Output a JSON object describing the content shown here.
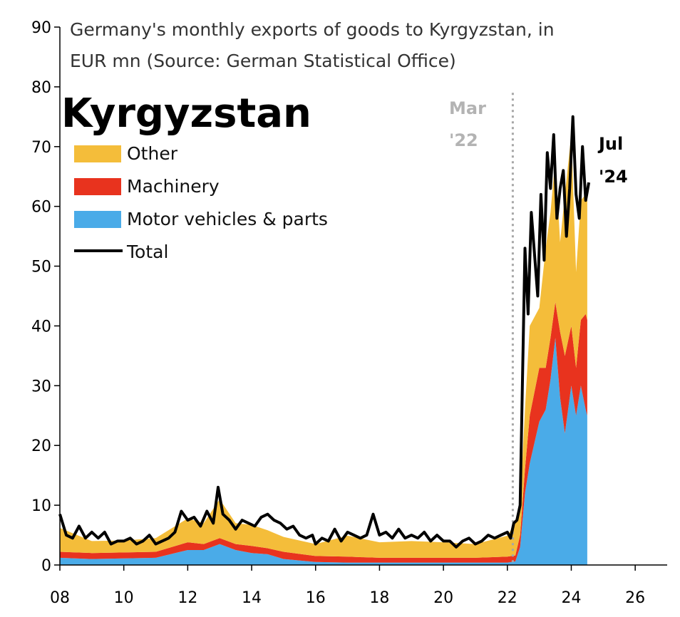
{
  "chart_data": {
    "type": "area",
    "title": "Kyrgyzstan",
    "subtitle_line1": "Germany's monthly exports of goods to Kyrgyzstan, in",
    "subtitle_line2": "EUR mn (Source: German Statistical Office)",
    "xlim": [
      2008,
      2027
    ],
    "ylim": [
      0,
      90
    ],
    "x_ticks": [
      {
        "value": 2008,
        "label": "08"
      },
      {
        "value": 2010,
        "label": "10"
      },
      {
        "value": 2012,
        "label": "12"
      },
      {
        "value": 2014,
        "label": "14"
      },
      {
        "value": 2016,
        "label": "16"
      },
      {
        "value": 2018,
        "label": "18"
      },
      {
        "value": 2020,
        "label": "20"
      },
      {
        "value": 2022,
        "label": "22"
      },
      {
        "value": 2024,
        "label": "24"
      },
      {
        "value": 2026,
        "label": "26"
      }
    ],
    "y_ticks": [
      0,
      10,
      20,
      30,
      40,
      50,
      60,
      70,
      80,
      90
    ],
    "grid": false,
    "legend_position": "top-left",
    "colors": {
      "other": "#f4bd3a",
      "machinery": "#e8331e",
      "motor": "#4aabe8",
      "total": "#000000",
      "marker": "#a6a6a6"
    },
    "series": [
      {
        "name": "Motor vehicles & parts",
        "key": "motor",
        "kind": "stacked-area",
        "points": [
          [
            2008,
            1.2
          ],
          [
            2009,
            1.0
          ],
          [
            2010,
            1.1
          ],
          [
            2011,
            1.2
          ],
          [
            2012,
            2.5
          ],
          [
            2012.5,
            2.5
          ],
          [
            2013,
            3.5
          ],
          [
            2013.5,
            2.5
          ],
          [
            2014,
            2.0
          ],
          [
            2014.5,
            1.8
          ],
          [
            2015,
            1.0
          ],
          [
            2016,
            0.5
          ],
          [
            2017,
            0.4
          ],
          [
            2018,
            0.4
          ],
          [
            2019,
            0.4
          ],
          [
            2020,
            0.4
          ],
          [
            2021,
            0.4
          ],
          [
            2022,
            0.4
          ],
          [
            2022.25,
            0.6
          ],
          [
            2022.4,
            3
          ],
          [
            2022.55,
            12
          ],
          [
            2022.7,
            17
          ],
          [
            2023,
            24
          ],
          [
            2023.2,
            26
          ],
          [
            2023.35,
            31
          ],
          [
            2023.5,
            38
          ],
          [
            2023.65,
            28
          ],
          [
            2023.8,
            22
          ],
          [
            2024,
            30
          ],
          [
            2024.15,
            25
          ],
          [
            2024.3,
            30
          ],
          [
            2024.45,
            26
          ],
          [
            2024.5,
            25
          ]
        ]
      },
      {
        "name": "Machinery",
        "key": "machinery",
        "kind": "stacked-area",
        "points": [
          [
            2008,
            1.0
          ],
          [
            2009,
            1.0
          ],
          [
            2010,
            1.0
          ],
          [
            2011,
            1.0
          ],
          [
            2012,
            1.3
          ],
          [
            2012.5,
            1.0
          ],
          [
            2013,
            1.0
          ],
          [
            2013.5,
            1.0
          ],
          [
            2014,
            1.2
          ],
          [
            2014.5,
            1.0
          ],
          [
            2015,
            1.2
          ],
          [
            2016,
            1.0
          ],
          [
            2017,
            1.0
          ],
          [
            2018,
            0.8
          ],
          [
            2019,
            0.8
          ],
          [
            2020,
            0.8
          ],
          [
            2021,
            0.8
          ],
          [
            2022,
            1.0
          ],
          [
            2022.25,
            1.0
          ],
          [
            2022.4,
            2
          ],
          [
            2022.55,
            4
          ],
          [
            2022.7,
            8
          ],
          [
            2023,
            9
          ],
          [
            2023.2,
            7
          ],
          [
            2023.35,
            7
          ],
          [
            2023.5,
            6
          ],
          [
            2023.65,
            11
          ],
          [
            2023.8,
            13
          ],
          [
            2024,
            10
          ],
          [
            2024.15,
            8
          ],
          [
            2024.3,
            11
          ],
          [
            2024.45,
            16
          ],
          [
            2024.5,
            16
          ]
        ]
      },
      {
        "name": "Other",
        "key": "other",
        "kind": "stacked-area",
        "points": [
          [
            2008,
            4.0
          ],
          [
            2009,
            2.0
          ],
          [
            2010,
            2.0
          ],
          [
            2011,
            2.3
          ],
          [
            2012,
            4.0
          ],
          [
            2012.5,
            3.5
          ],
          [
            2013,
            6.5
          ],
          [
            2013.5,
            3.5
          ],
          [
            2014,
            3.5
          ],
          [
            2014.5,
            3.0
          ],
          [
            2015,
            2.5
          ],
          [
            2016,
            2.0
          ],
          [
            2017,
            3.5
          ],
          [
            2018,
            2.6
          ],
          [
            2019,
            2.8
          ],
          [
            2020,
            2.6
          ],
          [
            2021,
            2.3
          ],
          [
            2022,
            3.5
          ],
          [
            2022.25,
            5.4
          ],
          [
            2022.4,
            5
          ],
          [
            2022.55,
            10
          ],
          [
            2022.7,
            15
          ],
          [
            2023,
            10
          ],
          [
            2023.2,
            20
          ],
          [
            2023.35,
            21
          ],
          [
            2023.5,
            24
          ],
          [
            2023.65,
            15
          ],
          [
            2023.8,
            27
          ],
          [
            2024,
            32
          ],
          [
            2024.15,
            16
          ],
          [
            2024.3,
            20
          ],
          [
            2024.45,
            20
          ],
          [
            2024.5,
            20
          ]
        ]
      },
      {
        "name": "Total",
        "key": "total",
        "kind": "line",
        "points": [
          [
            2008,
            8.5
          ],
          [
            2008.2,
            5
          ],
          [
            2008.4,
            4.5
          ],
          [
            2008.6,
            6.5
          ],
          [
            2008.8,
            4.5
          ],
          [
            2009,
            5.5
          ],
          [
            2009.2,
            4.5
          ],
          [
            2009.4,
            5.5
          ],
          [
            2009.6,
            3.5
          ],
          [
            2009.8,
            4
          ],
          [
            2010,
            4
          ],
          [
            2010.2,
            4.5
          ],
          [
            2010.4,
            3.5
          ],
          [
            2010.6,
            4
          ],
          [
            2010.8,
            5
          ],
          [
            2011,
            3.5
          ],
          [
            2011.2,
            4
          ],
          [
            2011.4,
            4.5
          ],
          [
            2011.6,
            5.5
          ],
          [
            2011.8,
            9
          ],
          [
            2012,
            7.5
          ],
          [
            2012.2,
            8
          ],
          [
            2012.4,
            6.5
          ],
          [
            2012.6,
            9
          ],
          [
            2012.8,
            7
          ],
          [
            2012.95,
            13
          ],
          [
            2013.1,
            8.5
          ],
          [
            2013.3,
            7.5
          ],
          [
            2013.5,
            6
          ],
          [
            2013.7,
            7.5
          ],
          [
            2013.9,
            7
          ],
          [
            2014.1,
            6.5
          ],
          [
            2014.3,
            8
          ],
          [
            2014.5,
            8.5
          ],
          [
            2014.7,
            7.5
          ],
          [
            2014.9,
            7
          ],
          [
            2015.1,
            6
          ],
          [
            2015.3,
            6.5
          ],
          [
            2015.5,
            5
          ],
          [
            2015.7,
            4.5
          ],
          [
            2015.9,
            5
          ],
          [
            2016,
            3.5
          ],
          [
            2016.2,
            4.5
          ],
          [
            2016.4,
            4
          ],
          [
            2016.6,
            6
          ],
          [
            2016.8,
            4
          ],
          [
            2017,
            5.5
          ],
          [
            2017.2,
            5
          ],
          [
            2017.4,
            4.5
          ],
          [
            2017.6,
            5
          ],
          [
            2017.8,
            8.5
          ],
          [
            2018,
            5
          ],
          [
            2018.2,
            5.5
          ],
          [
            2018.4,
            4.5
          ],
          [
            2018.6,
            6
          ],
          [
            2018.8,
            4.5
          ],
          [
            2019,
            5
          ],
          [
            2019.2,
            4.5
          ],
          [
            2019.4,
            5.5
          ],
          [
            2019.6,
            4
          ],
          [
            2019.8,
            5
          ],
          [
            2020,
            4
          ],
          [
            2020.2,
            4
          ],
          [
            2020.4,
            3
          ],
          [
            2020.6,
            4
          ],
          [
            2020.8,
            4.5
          ],
          [
            2021,
            3.5
          ],
          [
            2021.2,
            4
          ],
          [
            2021.4,
            5
          ],
          [
            2021.6,
            4.5
          ],
          [
            2021.8,
            5
          ],
          [
            2022,
            5.5
          ],
          [
            2022.1,
            4.5
          ],
          [
            2022.2,
            7
          ],
          [
            2022.3,
            7.5
          ],
          [
            2022.4,
            10
          ],
          [
            2022.55,
            53
          ],
          [
            2022.65,
            42
          ],
          [
            2022.75,
            59
          ],
          [
            2022.85,
            52
          ],
          [
            2022.95,
            45
          ],
          [
            2023.05,
            62
          ],
          [
            2023.15,
            51
          ],
          [
            2023.25,
            69
          ],
          [
            2023.35,
            63
          ],
          [
            2023.45,
            72
          ],
          [
            2023.55,
            58
          ],
          [
            2023.65,
            63
          ],
          [
            2023.75,
            66
          ],
          [
            2023.85,
            55
          ],
          [
            2023.95,
            63
          ],
          [
            2024.05,
            75
          ],
          [
            2024.15,
            62
          ],
          [
            2024.25,
            58
          ],
          [
            2024.35,
            70
          ],
          [
            2024.45,
            61
          ],
          [
            2024.55,
            64
          ]
        ]
      }
    ],
    "annotations": [
      {
        "line1": "Mar",
        "line2": "'22",
        "x": 2022.17,
        "style": "dotted-vertical-line"
      },
      {
        "line1": "Jul",
        "line2": "'24",
        "x": 2024.55
      }
    ]
  }
}
